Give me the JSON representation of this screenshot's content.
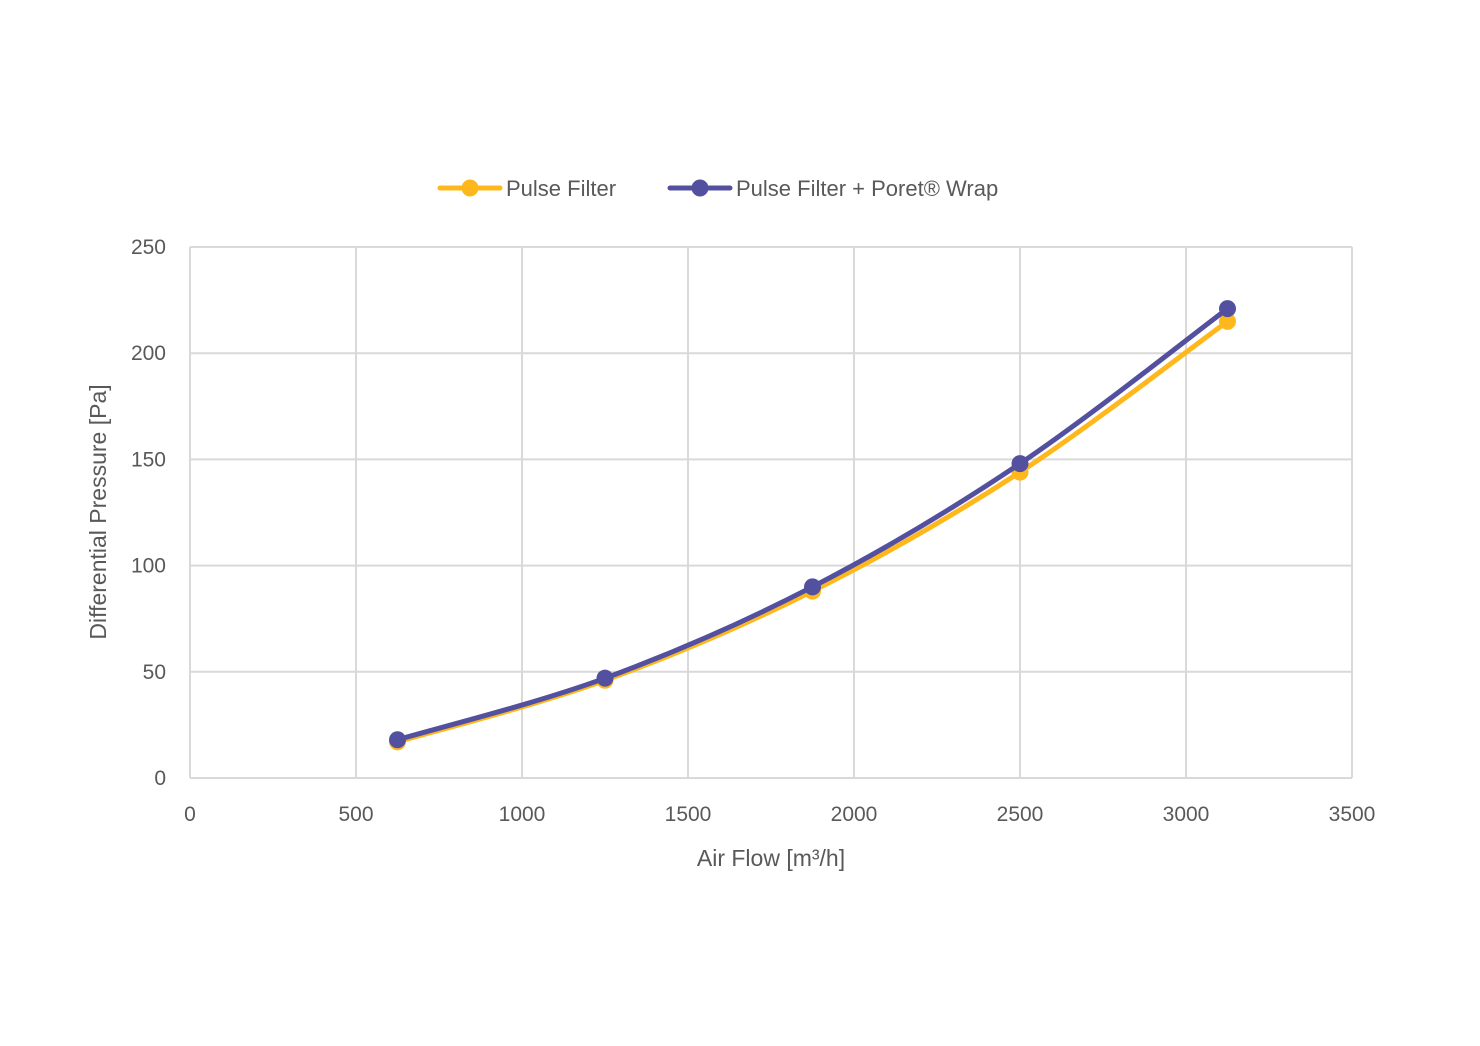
{
  "chart_data": {
    "type": "line",
    "title": "",
    "xlabel": "Air Flow [m³/h]",
    "ylabel": "Differential Pressure [Pa]",
    "xlim": [
      0,
      3500
    ],
    "ylim": [
      0,
      250
    ],
    "x_ticks": [
      "0",
      "500",
      "1000",
      "1500",
      "2000",
      "2500",
      "3000",
      "3500"
    ],
    "y_ticks": [
      "0",
      "50",
      "100",
      "150",
      "200",
      "250"
    ],
    "grid": true,
    "legend_position": "top-center",
    "smooth": true,
    "series": [
      {
        "name": "Pulse Filter",
        "color": "#FFB81C",
        "marker": "circle",
        "x": [
          625,
          1250,
          1875,
          2500,
          3125
        ],
        "y": [
          17,
          46,
          88,
          144,
          215
        ]
      },
      {
        "name": "Pulse Filter + Poret® Wrap",
        "color": "#5450A0",
        "marker": "circle",
        "x": [
          625,
          1250,
          1875,
          2500,
          3125
        ],
        "y": [
          18,
          47,
          90,
          148,
          221
        ]
      }
    ]
  },
  "colors": {
    "grid": "#D9D9D9",
    "text": "#595959"
  }
}
